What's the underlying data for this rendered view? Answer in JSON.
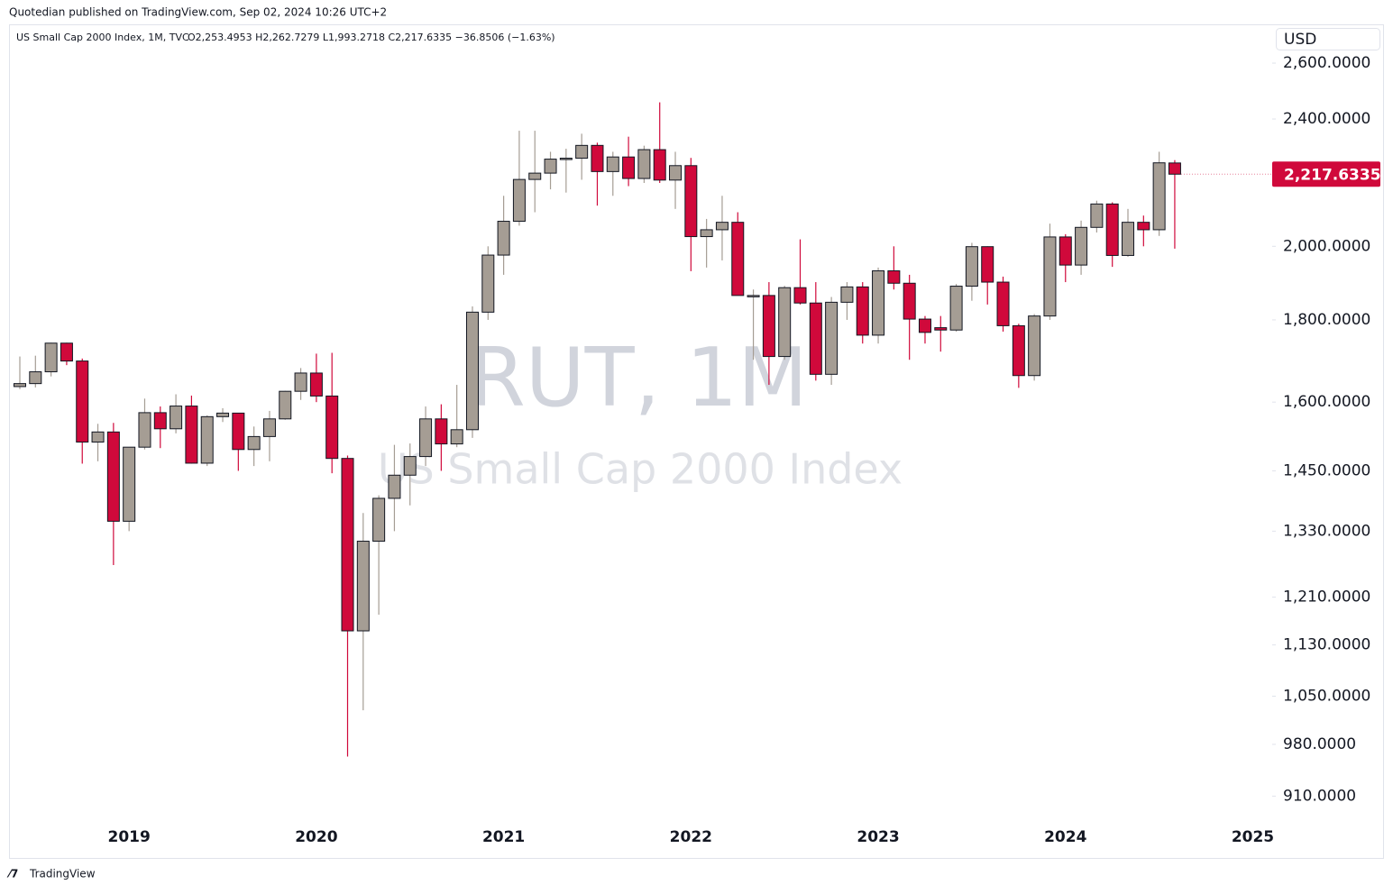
{
  "header": {
    "published": "Quotedian published on TradingView.com, Sep 02, 2024 10:26 UTC+2"
  },
  "footer": {
    "brand": "TradingView"
  },
  "chart_data": {
    "type": "candlestick",
    "symbol": "US Small Cap 2000 Index, 1M, TVC",
    "ohlc_text": "O2,253.4953 H2,262.7279 L1,993.2718 C2,217.6335 −36.8506 (−1.63%)",
    "watermark": "RUT, 1M",
    "watermark_sub": "US Small Cap 2000 Index",
    "currency": "USD",
    "up_color": "#a59d94",
    "down_color": "#d0093b",
    "log_scale": true,
    "grid": false,
    "categories": [
      null,
      null,
      null,
      null,
      null,
      null,
      null,
      "2019",
      null,
      null,
      null,
      null,
      null,
      null,
      null,
      null,
      null,
      null,
      null,
      "2020",
      null,
      null,
      null,
      null,
      null,
      null,
      null,
      null,
      null,
      null,
      null,
      "2021",
      null,
      null,
      null,
      null,
      null,
      null,
      null,
      null,
      null,
      null,
      null,
      "2022",
      null,
      null,
      null,
      null,
      null,
      null,
      null,
      null,
      null,
      null,
      null,
      "2023",
      null,
      null,
      null,
      null,
      null,
      null,
      null,
      null,
      null,
      null,
      null,
      "2024",
      null,
      null,
      null,
      null,
      null,
      null,
      null,
      null,
      null,
      null,
      null,
      "2025"
    ],
    "open": [
      1636,
      1643,
      1671,
      1741,
      1697,
      1511,
      1533,
      1349,
      1500,
      1576,
      1540,
      1591,
      1466,
      1567,
      1575,
      1495,
      1523,
      1562,
      1625,
      1668,
      1614,
      1476,
      1153,
      1311,
      1394,
      1441,
      1480,
      1562,
      1507,
      1538,
      1820,
      1975,
      2073,
      2201,
      2221,
      2266,
      2269,
      2311,
      2226,
      2273,
      2204,
      2297,
      2199,
      2245,
      2028,
      2048,
      2070,
      1864,
      1864,
      1708,
      1885,
      1844,
      1665,
      1846,
      1887,
      1761,
      1931,
      1897,
      1802,
      1780,
      1774,
      1889,
      1999,
      1900,
      1785,
      1662,
      1810,
      2027,
      1947,
      2055,
      2125,
      1974,
      2070,
      2048,
      2253.4953,
      null,
      null,
      null,
      null,
      null
    ],
    "high": [
      1708,
      1710,
      1742,
      1742,
      1703,
      1551,
      1553,
      1500,
      1608,
      1590,
      1618,
      1615,
      1570,
      1586,
      1575,
      1545,
      1580,
      1626,
      1680,
      1715,
      1717,
      1482,
      1365,
      1400,
      1505,
      1508,
      1590,
      1595,
      1640,
      1835,
      2000,
      2150,
      2360,
      2360,
      2290,
      2300,
      2350,
      2320,
      2290,
      2340,
      2310,
      2458,
      2290,
      2270,
      2080,
      2150,
      2100,
      1880,
      1900,
      1890,
      2020,
      1900,
      1860,
      1900,
      1900,
      1940,
      2000,
      1920,
      1810,
      1810,
      1895,
      2010,
      2000,
      1915,
      1790,
      1815,
      2066,
      2035,
      2075,
      2135,
      2130,
      2110,
      2090,
      2290,
      2262.7279,
      null,
      null,
      null,
      null,
      null
    ],
    "low": [
      1630,
      1634,
      1660,
      1687,
      1465,
      1470,
      1267,
      1330,
      1495,
      1498,
      1530,
      1465,
      1460,
      1555,
      1450,
      1460,
      1470,
      1560,
      1605,
      1600,
      1445,
      963,
      1029,
      1180,
      1330,
      1380,
      1460,
      1450,
      1500,
      1520,
      1800,
      1920,
      2060,
      2100,
      2170,
      2160,
      2200,
      2120,
      2150,
      2180,
      2190,
      2190,
      2110,
      1930,
      1940,
      1960,
      1864,
      1700,
      1640,
      1700,
      1840,
      1650,
      1640,
      1800,
      1740,
      1740,
      1880,
      1700,
      1740,
      1720,
      1770,
      1850,
      1840,
      1770,
      1633,
      1650,
      1800,
      1900,
      1920,
      2040,
      1942,
      1970,
      2000,
      2030,
      1993.2718,
      null,
      null,
      null,
      null,
      null
    ],
    "close": [
      1643,
      1671,
      1741,
      1697,
      1511,
      1533,
      1349,
      1500,
      1576,
      1540,
      1591,
      1466,
      1567,
      1575,
      1495,
      1523,
      1562,
      1625,
      1668,
      1614,
      1476,
      1153,
      1311,
      1394,
      1441,
      1480,
      1562,
      1507,
      1538,
      1820,
      1975,
      2073,
      2201,
      2221,
      2266,
      2269,
      2311,
      2226,
      2273,
      2204,
      2297,
      2199,
      2245,
      2028,
      2048,
      2070,
      1864,
      1864,
      1708,
      1885,
      1844,
      1665,
      1846,
      1887,
      1761,
      1931,
      1897,
      1802,
      1768,
      1774,
      1889,
      1999,
      1900,
      1785,
      1662,
      1810,
      2027,
      1947,
      2055,
      2125,
      1974,
      2070,
      2048,
      2254,
      2217.6335,
      null,
      null,
      null,
      null,
      null
    ],
    "last_price": {
      "value": 2217.6335,
      "label": "2,217.6335"
    },
    "ylim": [
      877,
      2745
    ],
    "yticks": [
      {
        "value": 910,
        "label": "910.0000"
      },
      {
        "value": 980,
        "label": "980.0000"
      },
      {
        "value": 1050,
        "label": "1,050.0000"
      },
      {
        "value": 1130,
        "label": "1,130.0000"
      },
      {
        "value": 1210,
        "label": "1,210.0000"
      },
      {
        "value": 1330,
        "label": "1,330.0000"
      },
      {
        "value": 1450,
        "label": "1,450.0000"
      },
      {
        "value": 1600,
        "label": "1,600.0000"
      },
      {
        "value": 1800,
        "label": "1,800.0000"
      },
      {
        "value": 2000,
        "label": "2,000.0000"
      },
      {
        "value": 2400,
        "label": "2,400.0000"
      },
      {
        "value": 2600,
        "label": "2,600.0000"
      }
    ]
  }
}
